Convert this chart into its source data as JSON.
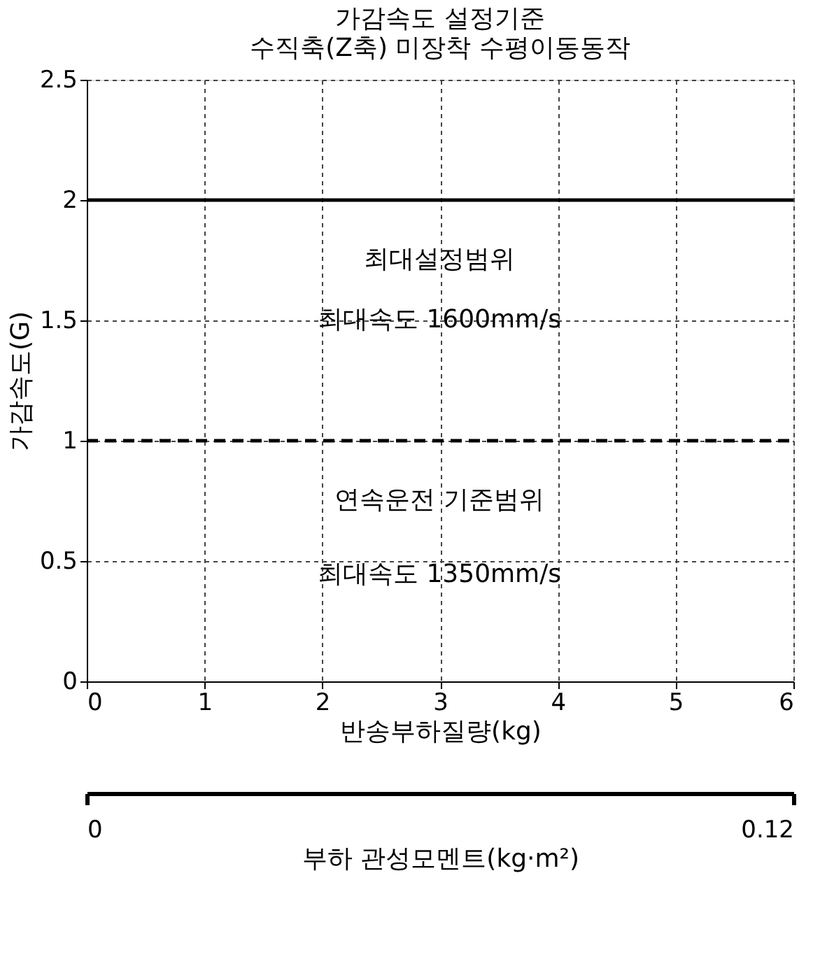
{
  "chart_data": {
    "type": "line",
    "title": "가감속도 설정기준",
    "subtitle": "수직축(Z축) 미장착 수평이동동작",
    "xlabel": "반송부하질량(kg)",
    "ylabel": "가감속도(G)",
    "x2label": "부하 관성모멘트(kg·m²)",
    "x": [
      0,
      6
    ],
    "series": [
      {
        "color": "#000000",
        "values": [
          2,
          2
        ],
        "line_style": "solid"
      },
      {
        "color": "#000000",
        "values": [
          1,
          1
        ],
        "line_style": "dashed"
      }
    ],
    "xlim": [
      0,
      6
    ],
    "xticks": [
      0,
      1,
      2,
      3,
      4,
      5,
      6
    ],
    "ylim": [
      0,
      2.5
    ],
    "yticks": [
      0,
      0.5,
      1,
      1.5,
      2,
      2.5
    ],
    "x2lim": [
      0,
      0.12
    ],
    "x2ticks": [
      0,
      0.12
    ],
    "grid": true,
    "marker": "none",
    "annotations": [
      "최대설정범위",
      "최대속도 1600mm/s",
      "연속운전 기준범위",
      "최대속도 1350mm/s"
    ]
  }
}
